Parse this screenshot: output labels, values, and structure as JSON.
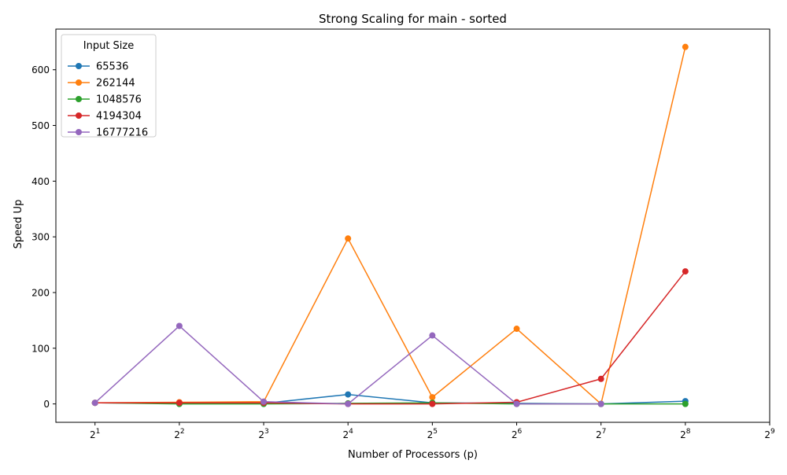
{
  "chart_data": {
    "type": "line",
    "title": "Strong Scaling for main - sorted",
    "xlabel": "Number of Processors (p)",
    "ylabel": "Speed Up",
    "x_scale": "log2",
    "x": [
      2,
      4,
      8,
      16,
      32,
      64,
      128,
      256
    ],
    "xlim": [
      1.45,
      512
    ],
    "ylim": [
      -33,
      673
    ],
    "x_ticks": [
      {
        "value": 2,
        "base": "2",
        "exp": "1"
      },
      {
        "value": 4,
        "base": "2",
        "exp": "2"
      },
      {
        "value": 8,
        "base": "2",
        "exp": "3"
      },
      {
        "value": 16,
        "base": "2",
        "exp": "4"
      },
      {
        "value": 32,
        "base": "2",
        "exp": "5"
      },
      {
        "value": 64,
        "base": "2",
        "exp": "6"
      },
      {
        "value": 128,
        "base": "2",
        "exp": "7"
      },
      {
        "value": 256,
        "base": "2",
        "exp": "8"
      },
      {
        "value": 512,
        "base": "2",
        "exp": "9"
      }
    ],
    "y_ticks": [
      0,
      100,
      200,
      300,
      400,
      500,
      600
    ],
    "grid": false,
    "legend": {
      "title": "Input Size",
      "placement": "top-left"
    },
    "series": [
      {
        "name": "65536",
        "color": "#1f77b4",
        "values": [
          2,
          1,
          1,
          17,
          2,
          1,
          0,
          5
        ]
      },
      {
        "name": "262144",
        "color": "#ff7f0e",
        "values": [
          2,
          3,
          4,
          297,
          12,
          135,
          0,
          641
        ]
      },
      {
        "name": "1048576",
        "color": "#2ca02c",
        "values": [
          2,
          0,
          0,
          1,
          2,
          0,
          0,
          0
        ]
      },
      {
        "name": "4194304",
        "color": "#d62728",
        "values": [
          2,
          2,
          2,
          0,
          0,
          3,
          45,
          238
        ]
      },
      {
        "name": "16777216",
        "color": "#9467bd",
        "values": [
          2,
          140,
          4,
          0,
          123,
          0,
          0,
          null
        ]
      }
    ]
  }
}
